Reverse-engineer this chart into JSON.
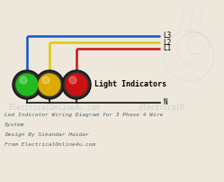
{
  "bg_color": "#eee8dc",
  "title_lines": [
    "Led Indicator Wiring Diagram for 3 Phase 4 Wire",
    "System",
    "Design By Sikandar Haidar",
    "From ElectricalOnline4u.com"
  ],
  "label_light": "Light Indicators",
  "label_N": "N",
  "label_L1": "L1",
  "label_L2": "L2",
  "label_L3": "L3",
  "wire_blue": "#1155cc",
  "wire_yellow": "#ddcc00",
  "wire_red": "#cc1111",
  "ind_green": "#22bb22",
  "ind_yellow": "#ddaa00",
  "ind_red": "#cc1111",
  "ind_body": "#1a1a1a",
  "neutral_color": "#111111",
  "wire_lw": 1.8,
  "neutral_lw": 1.2,
  "text_color_blue": "#557799",
  "watermark_color": "#a8c8d8",
  "title_color": "#4a6677"
}
